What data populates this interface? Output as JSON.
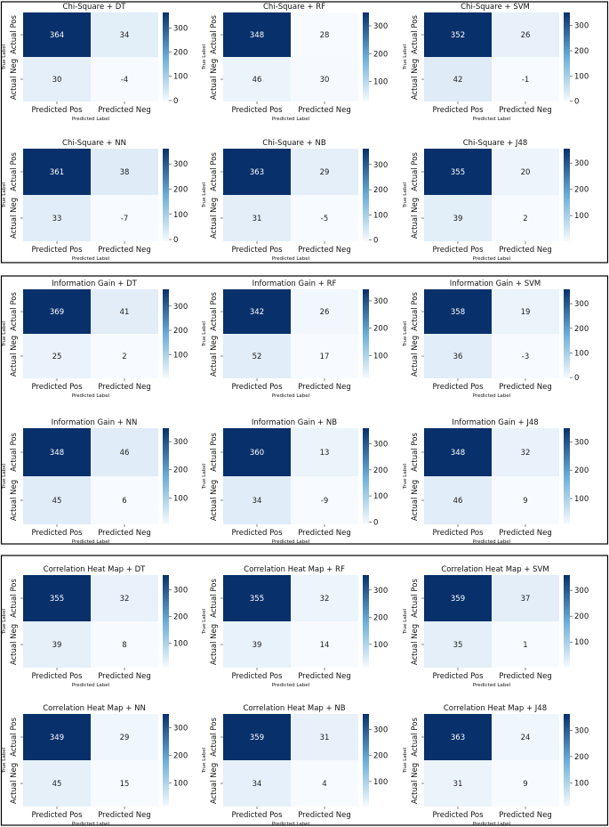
{
  "colors": {
    "cmap_low": "#f7fbff",
    "cmap_high": "#08306b",
    "border": "#000000",
    "text_dark": "#222222",
    "text_light": "#ffffff"
  },
  "chart_data": {
    "type": "heatmap",
    "row_labels": [
      "Actual Pos",
      "Actual Neg"
    ],
    "col_labels": [
      "Predicted Pos",
      "Predicted Neg"
    ],
    "xlabel": "Predicted Label",
    "ylabel": "True Label",
    "groups": [
      {
        "name": "Chi-Square",
        "charts": [
          {
            "title": "Chi-Square + DT",
            "matrix": [
              [
                364,
                34
              ],
              [
                30,
                -4
              ]
            ],
            "colorbar_ticks": [
              0,
              100,
              200,
              300
            ],
            "vmin": -4,
            "vmax": 364
          },
          {
            "title": "Chi-Square + RF",
            "matrix": [
              [
                348,
                28
              ],
              [
                46,
                30
              ]
            ],
            "colorbar_ticks": [
              100,
              200,
              300
            ],
            "vmin": 28,
            "vmax": 348
          },
          {
            "title": "Chi-Square + SVM",
            "matrix": [
              [
                352,
                26
              ],
              [
                42,
                -1
              ]
            ],
            "colorbar_ticks": [
              0,
              100,
              200,
              300
            ],
            "vmin": -1,
            "vmax": 352
          },
          {
            "title": "Chi-Square + NN",
            "matrix": [
              [
                361,
                38
              ],
              [
                33,
                -7
              ]
            ],
            "colorbar_ticks": [
              0,
              100,
              200,
              300
            ],
            "vmin": -7,
            "vmax": 361
          },
          {
            "title": "Chi-Square + NB",
            "matrix": [
              [
                363,
                29
              ],
              [
                31,
                -5
              ]
            ],
            "colorbar_ticks": [
              0,
              100,
              200,
              300
            ],
            "vmin": -5,
            "vmax": 363
          },
          {
            "title": "Chi-Square + J48",
            "matrix": [
              [
                355,
                20
              ],
              [
                39,
                2
              ]
            ],
            "colorbar_ticks": [
              100,
              200,
              300
            ],
            "vmin": 2,
            "vmax": 355
          }
        ]
      },
      {
        "name": "Information Gain",
        "charts": [
          {
            "title": "Information Gain + DT",
            "matrix": [
              [
                369,
                41
              ],
              [
                25,
                2
              ]
            ],
            "colorbar_ticks": [
              100,
              200,
              300
            ],
            "vmin": 2,
            "vmax": 369
          },
          {
            "title": "Information Gain + RF",
            "matrix": [
              [
                342,
                26
              ],
              [
                52,
                17
              ]
            ],
            "colorbar_ticks": [
              100,
              200,
              300
            ],
            "vmin": 17,
            "vmax": 342
          },
          {
            "title": "Information Gain + SVM",
            "matrix": [
              [
                358,
                19
              ],
              [
                36,
                -3
              ]
            ],
            "colorbar_ticks": [
              0,
              100,
              200,
              300
            ],
            "vmin": -3,
            "vmax": 358
          },
          {
            "title": "Information Gain + NN",
            "matrix": [
              [
                348,
                46
              ],
              [
                45,
                6
              ]
            ],
            "colorbar_ticks": [
              100,
              200,
              300
            ],
            "vmin": 6,
            "vmax": 348
          },
          {
            "title": "Information Gain + NB",
            "matrix": [
              [
                360,
                13
              ],
              [
                34,
                -9
              ]
            ],
            "colorbar_ticks": [
              0,
              100,
              200,
              300
            ],
            "vmin": -9,
            "vmax": 360
          },
          {
            "title": "Information Gain + J48",
            "matrix": [
              [
                348,
                32
              ],
              [
                46,
                9
              ]
            ],
            "colorbar_ticks": [
              100,
              200,
              300
            ],
            "vmin": 9,
            "vmax": 348
          }
        ]
      },
      {
        "name": "Correlation Heat Map",
        "charts": [
          {
            "title": "Correlation Heat Map + DT",
            "matrix": [
              [
                355,
                32
              ],
              [
                39,
                8
              ]
            ],
            "colorbar_ticks": [
              100,
              200,
              300
            ],
            "vmin": 8,
            "vmax": 355
          },
          {
            "title": "Correlation Heat Map + RF",
            "matrix": [
              [
                355,
                32
              ],
              [
                39,
                14
              ]
            ],
            "colorbar_ticks": [
              100,
              200,
              300
            ],
            "vmin": 14,
            "vmax": 355
          },
          {
            "title": "Correlation Heat Map + SVM",
            "matrix": [
              [
                359,
                37
              ],
              [
                35,
                1
              ]
            ],
            "colorbar_ticks": [
              100,
              200,
              300
            ],
            "vmin": 1,
            "vmax": 359
          },
          {
            "title": "Correlation Heat Map + NN",
            "matrix": [
              [
                349,
                29
              ],
              [
                45,
                15
              ]
            ],
            "colorbar_ticks": [
              100,
              200,
              300
            ],
            "vmin": 15,
            "vmax": 349
          },
          {
            "title": "Correlation Heat Map + NB",
            "matrix": [
              [
                359,
                31
              ],
              [
                34,
                4
              ]
            ],
            "colorbar_ticks": [
              100,
              200,
              300
            ],
            "vmin": 4,
            "vmax": 359
          },
          {
            "title": "Correlation Heat Map + J48",
            "matrix": [
              [
                363,
                24
              ],
              [
                31,
                9
              ]
            ],
            "colorbar_ticks": [
              100,
              200,
              300
            ],
            "vmin": 9,
            "vmax": 363
          }
        ]
      }
    ]
  }
}
